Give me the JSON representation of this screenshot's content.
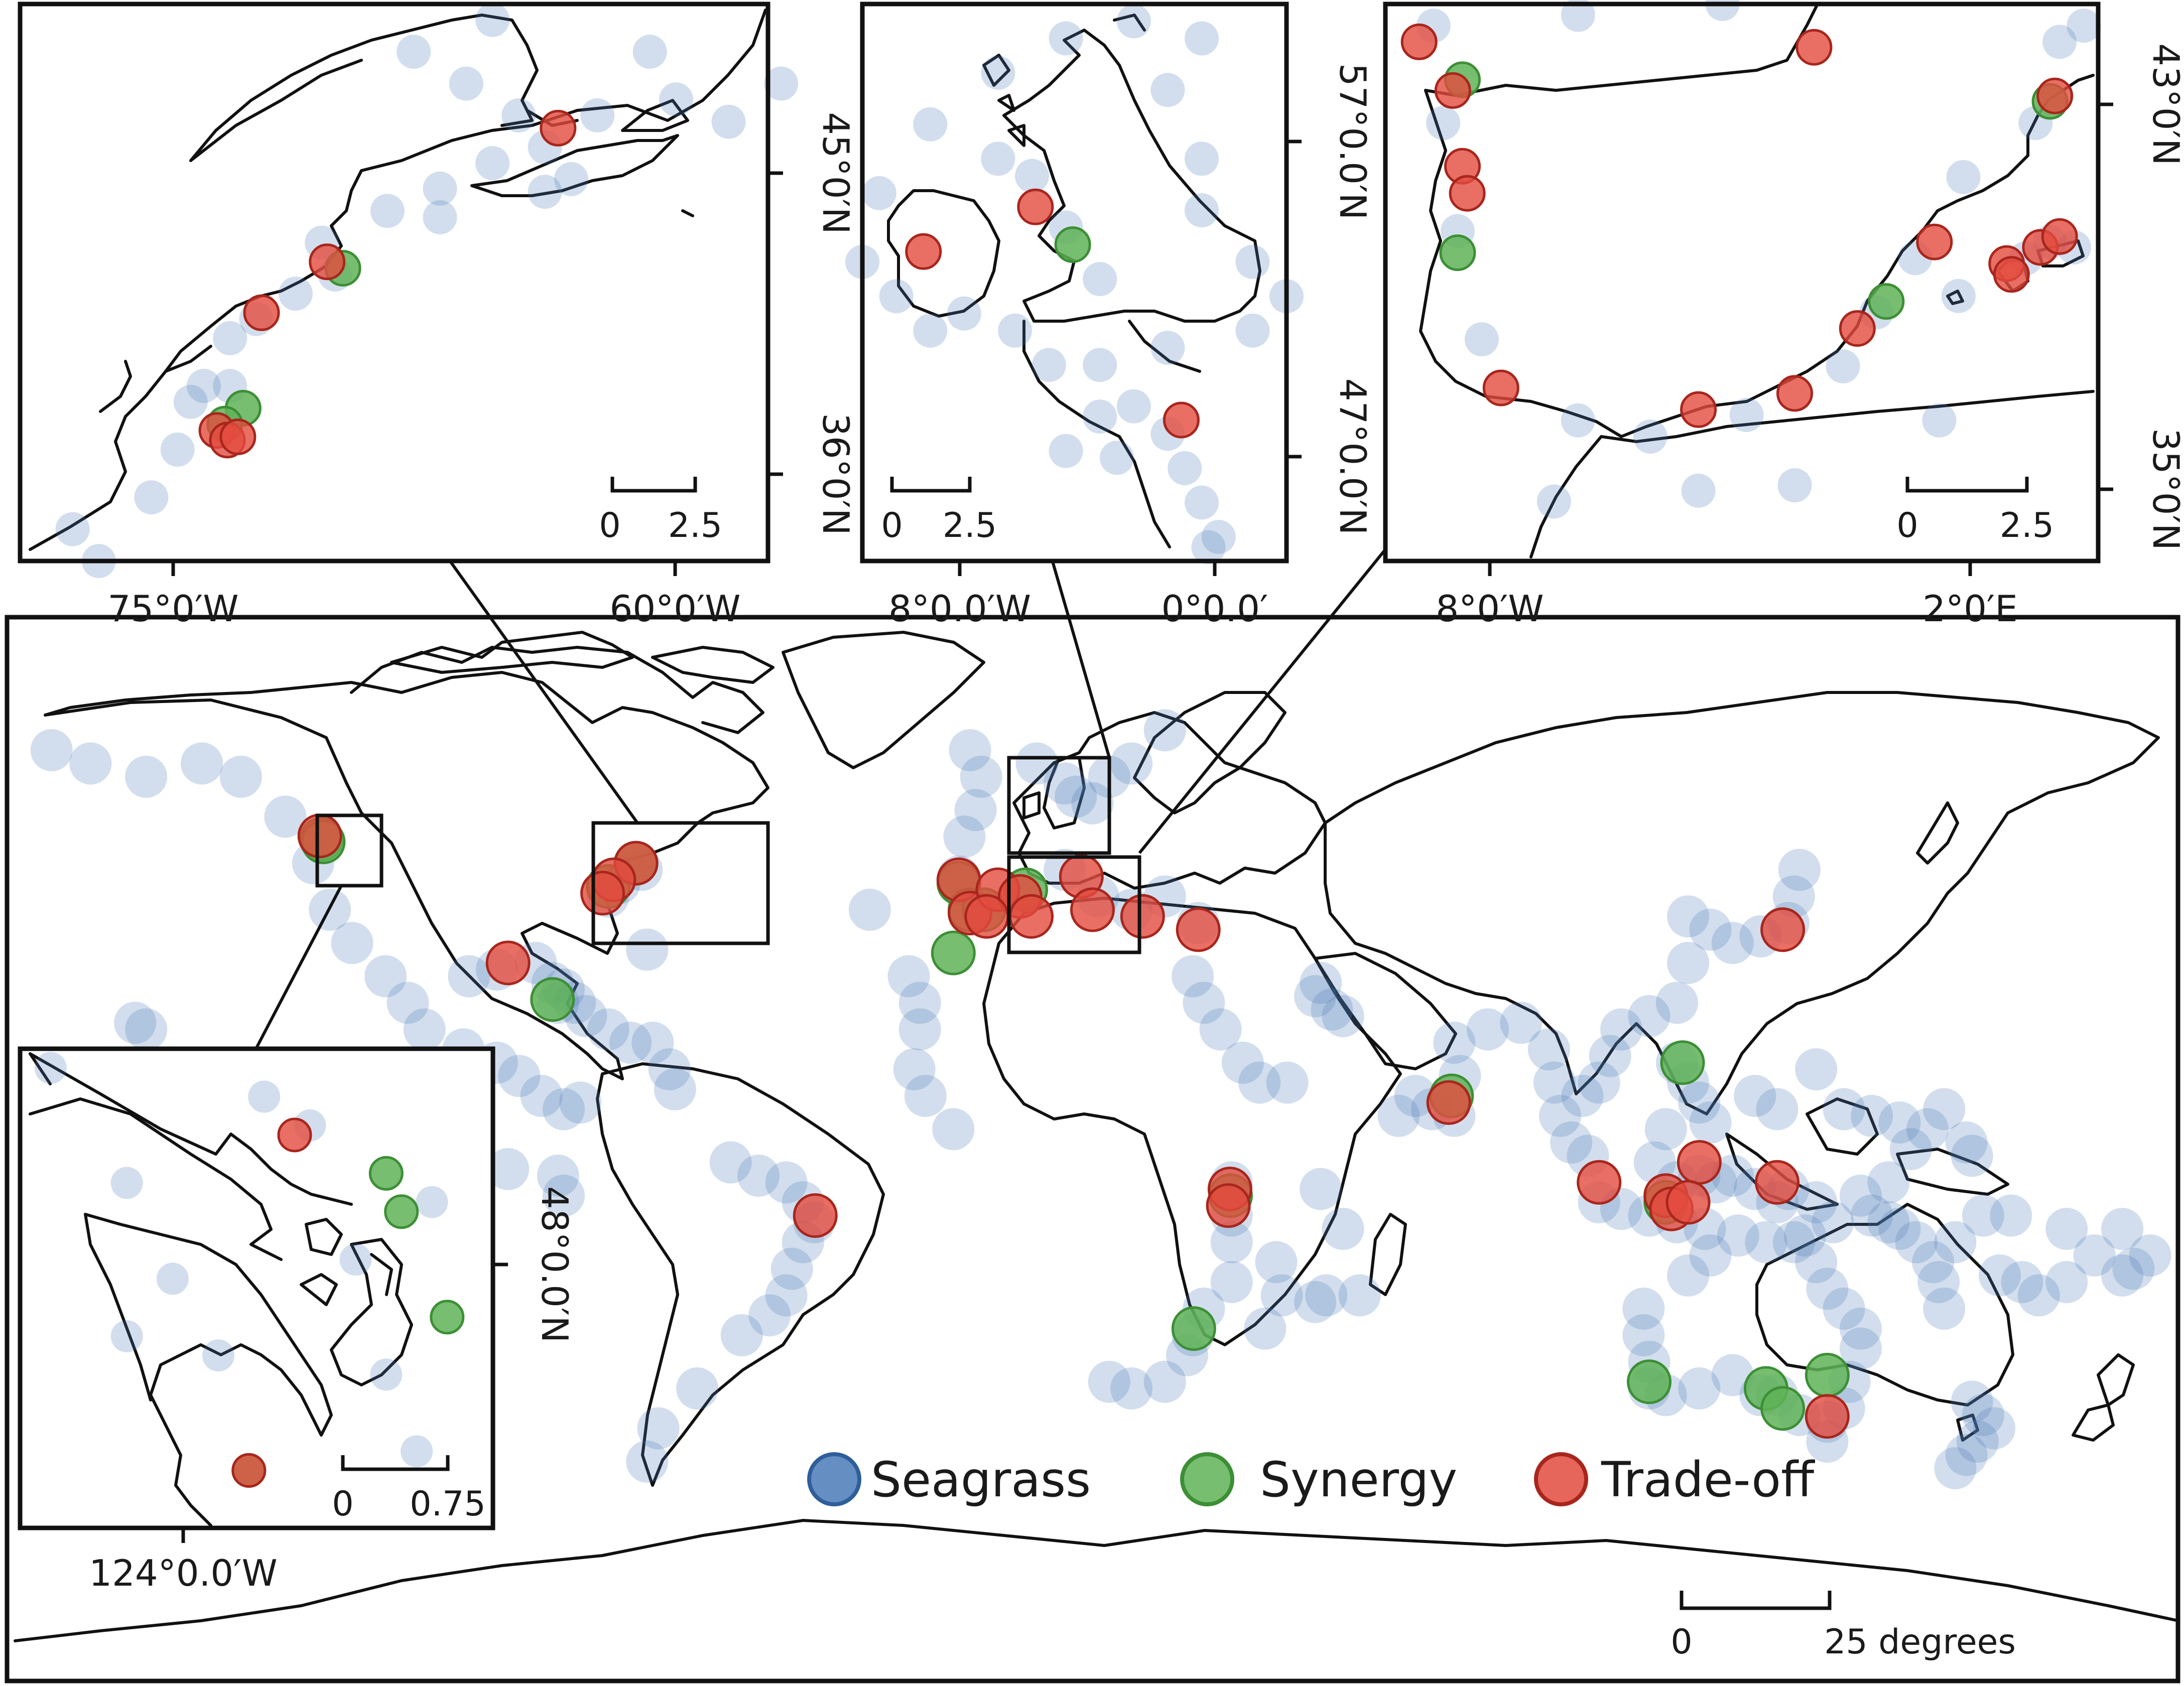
{
  "legend": {
    "items": [
      {
        "name": "seagrass",
        "label": "Seagrass",
        "fill": "#4a7ab8",
        "stroke": "#2f5e9b"
      },
      {
        "name": "synergy",
        "label": "Synergy",
        "fill": "#5fb357",
        "stroke": "#3d8f35"
      },
      {
        "name": "tradeoff",
        "label": "Trade-off",
        "fill": "#e34b3f",
        "stroke": "#a8261d"
      }
    ]
  },
  "main": {
    "scale": {
      "start": "0",
      "end": "25 degrees"
    },
    "seagrass": [
      [
        -172,
        62
      ],
      [
        -165,
        60
      ],
      [
        -155,
        58
      ],
      [
        -145,
        60
      ],
      [
        -138,
        58
      ],
      [
        -130,
        52
      ],
      [
        -125,
        45
      ],
      [
        -122,
        38
      ],
      [
        -118,
        33
      ],
      [
        -112,
        28
      ],
      [
        -108,
        24
      ],
      [
        -105,
        20
      ],
      [
        -98,
        17
      ],
      [
        -92,
        15
      ],
      [
        -88,
        13
      ],
      [
        -84,
        10
      ],
      [
        -80,
        8
      ],
      [
        -77,
        9
      ],
      [
        -157,
        21
      ],
      [
        -155,
        20
      ],
      [
        -97,
        28
      ],
      [
        -92,
        29
      ],
      [
        -85,
        30
      ],
      [
        -82,
        27
      ],
      [
        -81,
        24
      ],
      [
        -80,
        26
      ],
      [
        -78,
        24
      ],
      [
        -76,
        22
      ],
      [
        -72,
        20
      ],
      [
        -68,
        18
      ],
      [
        -64,
        18
      ],
      [
        -61,
        14
      ],
      [
        -60,
        11
      ],
      [
        -65,
        32
      ],
      [
        -72,
        40
      ],
      [
        -70,
        42
      ],
      [
        -66,
        44
      ],
      [
        -50,
        0
      ],
      [
        -45,
        -2
      ],
      [
        -40,
        -3
      ],
      [
        -37,
        -6
      ],
      [
        -35,
        -9
      ],
      [
        -37,
        -12
      ],
      [
        -39,
        -16
      ],
      [
        -40,
        -20
      ],
      [
        -43,
        -23
      ],
      [
        -48,
        -26
      ],
      [
        -56,
        -34
      ],
      [
        -63,
        -40
      ],
      [
        -65,
        -45
      ],
      [
        -80,
        -5
      ],
      [
        -81,
        -2
      ],
      [
        -90,
        -1
      ],
      [
        -25,
        38
      ],
      [
        -18,
        28
      ],
      [
        -16,
        24
      ],
      [
        -16,
        20
      ],
      [
        -17,
        14
      ],
      [
        -15,
        10
      ],
      [
        -10,
        5
      ],
      [
        -7,
        62
      ],
      [
        -9,
        43
      ],
      [
        -8,
        49
      ],
      [
        -6,
        53
      ],
      [
        -5,
        58
      ],
      [
        5,
        60
      ],
      [
        10,
        57
      ],
      [
        12,
        55
      ],
      [
        15,
        54
      ],
      [
        18,
        58
      ],
      [
        22,
        60
      ],
      [
        28,
        65
      ],
      [
        10,
        44
      ],
      [
        16,
        40
      ],
      [
        22,
        38
      ],
      [
        28,
        40
      ],
      [
        34,
        36
      ],
      [
        33,
        28
      ],
      [
        35,
        24
      ],
      [
        38,
        20
      ],
      [
        42,
        15
      ],
      [
        45,
        12
      ],
      [
        50,
        12
      ],
      [
        55,
        25
      ],
      [
        56,
        27
      ],
      [
        58,
        23
      ],
      [
        60,
        22
      ],
      [
        40,
        -3
      ],
      [
        40,
        -8
      ],
      [
        40,
        -12
      ],
      [
        40,
        -18
      ],
      [
        35,
        -22
      ],
      [
        33,
        -26
      ],
      [
        32,
        -29
      ],
      [
        28,
        -33
      ],
      [
        22,
        -34
      ],
      [
        18,
        -33
      ],
      [
        48,
        -15
      ],
      [
        49,
        -20
      ],
      [
        46,
        -25
      ],
      [
        55,
        -21
      ],
      [
        57,
        -20
      ],
      [
        56,
        -4
      ],
      [
        60,
        -10
      ],
      [
        63,
        -20
      ],
      [
        70,
        7
      ],
      [
        73,
        10
      ],
      [
        76,
        8
      ],
      [
        80,
        7
      ],
      [
        81,
        13
      ],
      [
        80,
        18
      ],
      [
        86,
        20
      ],
      [
        92,
        21
      ],
      [
        97,
        17
      ],
      [
        98,
        12
      ],
      [
        99,
        7
      ],
      [
        101,
        3
      ],
      [
        104,
        1
      ],
      [
        106,
        -6
      ],
      [
        110,
        -7
      ],
      [
        115,
        -8
      ],
      [
        120,
        -9
      ],
      [
        125,
        -10
      ],
      [
        103,
        10
      ],
      [
        106,
        12
      ],
      [
        108,
        16
      ],
      [
        110,
        20
      ],
      [
        115,
        22
      ],
      [
        120,
        24
      ],
      [
        122,
        30
      ],
      [
        122,
        37
      ],
      [
        126,
        35
      ],
      [
        130,
        33
      ],
      [
        135,
        34
      ],
      [
        140,
        36
      ],
      [
        141,
        40
      ],
      [
        142,
        44
      ],
      [
        120,
        15
      ],
      [
        122,
        12
      ],
      [
        124,
        9
      ],
      [
        126,
        6
      ],
      [
        118,
        5
      ],
      [
        116,
        0
      ],
      [
        120,
        -3
      ],
      [
        124,
        -2
      ],
      [
        127,
        -3
      ],
      [
        130,
        -2
      ],
      [
        134,
        -4
      ],
      [
        138,
        -6
      ],
      [
        140,
        -4
      ],
      [
        145,
        -6
      ],
      [
        148,
        -9
      ],
      [
        134,
        10
      ],
      [
        138,
        8
      ],
      [
        145,
        14
      ],
      [
        150,
        8
      ],
      [
        155,
        7
      ],
      [
        160,
        6
      ],
      [
        165,
        5
      ],
      [
        168,
        8
      ],
      [
        172,
        3
      ],
      [
        173,
        1
      ],
      [
        162,
        2
      ],
      [
        158,
        -3
      ],
      [
        153,
        -5
      ],
      [
        155,
        -8
      ],
      [
        158,
        -9
      ],
      [
        160,
        -10
      ],
      [
        163,
        -12
      ],
      [
        166,
        -15
      ],
      [
        167,
        -18
      ],
      [
        168,
        -22
      ],
      [
        178,
        -17
      ],
      [
        182,
        -18
      ],
      [
        185,
        -20
      ],
      [
        190,
        -18
      ],
      [
        195,
        -14
      ],
      [
        200,
        -17
      ],
      [
        202,
        -16
      ],
      [
        205,
        -14
      ],
      [
        200,
        -10
      ],
      [
        190,
        -10
      ],
      [
        180,
        -8
      ],
      [
        175,
        -8
      ],
      [
        170,
        -12
      ],
      [
        114,
        -22
      ],
      [
        114,
        -26
      ],
      [
        115,
        -30
      ],
      [
        115,
        -34
      ],
      [
        118,
        -35
      ],
      [
        124,
        -34
      ],
      [
        130,
        -32
      ],
      [
        135,
        -35
      ],
      [
        138,
        -35
      ],
      [
        142,
        -38
      ],
      [
        147,
        -39
      ],
      [
        150,
        -37
      ],
      [
        151,
        -33
      ],
      [
        153,
        -28
      ],
      [
        153,
        -25
      ],
      [
        150,
        -22
      ],
      [
        147,
        -19
      ],
      [
        145,
        -15
      ],
      [
        143,
        -11
      ],
      [
        141,
        -12
      ],
      [
        136,
        -12
      ],
      [
        131,
        -11
      ],
      [
        126,
        -14
      ],
      [
        122,
        -17
      ],
      [
        147,
        -42
      ],
      [
        173,
        -36
      ],
      [
        175,
        -38
      ],
      [
        177,
        -40
      ],
      [
        174,
        -42
      ],
      [
        172,
        -44
      ],
      [
        170,
        -46
      ]
    ],
    "synergy": [
      [
        -123.5,
        48.6
      ],
      [
        -123.2,
        48.2
      ],
      [
        -67,
        45
      ],
      [
        -72,
        41.5
      ],
      [
        -82,
        24.5
      ],
      [
        -10,
        31.5
      ],
      [
        -9,
        42
      ],
      [
        -7,
        38
      ],
      [
        3,
        41
      ],
      [
        -4.5,
        38
      ],
      [
        39.8,
        -5
      ],
      [
        33.2,
        -25
      ],
      [
        79.5,
        10
      ],
      [
        121,
        15
      ],
      [
        118,
        -6
      ],
      [
        115,
        -33
      ],
      [
        136,
        -34
      ],
      [
        139,
        -37
      ],
      [
        147,
        -32
      ]
    ],
    "tradeoff": [
      [
        -123.8,
        49.1
      ],
      [
        -67,
        45
      ],
      [
        -71,
        42.5
      ],
      [
        -73,
        40.5
      ],
      [
        -90,
        30
      ],
      [
        -9,
        42.5
      ],
      [
        -7,
        37.5
      ],
      [
        -2,
        41
      ],
      [
        2,
        40
      ],
      [
        -4,
        37
      ],
      [
        4,
        37
      ],
      [
        13,
        43
      ],
      [
        15,
        38
      ],
      [
        24,
        37
      ],
      [
        34,
        35
      ],
      [
        39.7,
        -4
      ],
      [
        39.4,
        -6.5
      ],
      [
        -34.8,
        -8
      ],
      [
        79,
        9
      ],
      [
        139,
        35
      ],
      [
        124,
        0
      ],
      [
        106,
        -3
      ],
      [
        118,
        -5
      ],
      [
        119,
        -7
      ],
      [
        122,
        -6
      ],
      [
        138,
        -3
      ],
      [
        147,
        -38.2
      ]
    ]
  },
  "inset_ne_us": {
    "x_ticks": [
      "75°0′W",
      "60°0′W"
    ],
    "y_ticks": [
      "45°0′N",
      "36°0′N"
    ],
    "scale": {
      "start": "0",
      "end": "2.5"
    },
    "seagrass": [
      [
        -80,
        34
      ],
      [
        -79,
        33
      ],
      [
        -77,
        35
      ],
      [
        -76,
        36.5
      ],
      [
        -75.5,
        38
      ],
      [
        -74,
        40
      ],
      [
        -73,
        40.6
      ],
      [
        -71.5,
        41.4
      ],
      [
        -70,
        42
      ],
      [
        -70.5,
        43
      ],
      [
        -68,
        44
      ],
      [
        -66,
        44.7
      ],
      [
        -64,
        45.5
      ],
      [
        -62,
        46
      ],
      [
        -61,
        45
      ],
      [
        -63,
        47
      ],
      [
        -65,
        48
      ],
      [
        -67,
        49
      ],
      [
        -64,
        50
      ],
      [
        -60,
        47
      ],
      [
        -57,
        47.5
      ],
      [
        -55,
        46.8
      ],
      [
        -58,
        49
      ],
      [
        -56,
        52
      ],
      [
        -53,
        48
      ],
      [
        -62,
        44.6
      ],
      [
        -66,
        43.8
      ],
      [
        -74,
        38.5
      ],
      [
        -75,
        38.5
      ]
    ],
    "synergy": [
      [
        -73.5,
        37.8
      ],
      [
        -74.2,
        37.3
      ],
      [
        -69.7,
        42.2
      ]
    ],
    "tradeoff": [
      [
        -61.5,
        46.6
      ],
      [
        -70.3,
        42.4
      ],
      [
        -72.8,
        40.8
      ],
      [
        -74.5,
        37.1
      ],
      [
        -74.1,
        36.8
      ],
      [
        -73.7,
        36.9
      ]
    ]
  },
  "inset_uk": {
    "x_ticks": [
      "8°0.0′W",
      "0°0.0′"
    ],
    "y_ticks": [
      "57°0.0′N",
      "47°0.0′N"
    ],
    "scale": {
      "start": "0",
      "end": "2.5"
    },
    "seagrass": [
      [
        -11,
        53
      ],
      [
        -10.5,
        55
      ],
      [
        -9,
        57
      ],
      [
        -7,
        58.5
      ],
      [
        -5,
        59.5
      ],
      [
        -3,
        60
      ],
      [
        -1,
        59.5
      ],
      [
        -2,
        58
      ],
      [
        -1,
        56
      ],
      [
        -1,
        54.5
      ],
      [
        0.5,
        53
      ],
      [
        1.5,
        52
      ],
      [
        0.5,
        51
      ],
      [
        -2,
        50.5
      ],
      [
        -4,
        50
      ],
      [
        -5.5,
        50
      ],
      [
        -6.5,
        51
      ],
      [
        -8,
        51.5
      ],
      [
        -10,
        52
      ],
      [
        -5,
        47.5
      ],
      [
        -4,
        48.5
      ],
      [
        -3,
        48.8
      ],
      [
        -2,
        48
      ],
      [
        -1.5,
        47
      ],
      [
        -1,
        46
      ],
      [
        -0.5,
        45
      ],
      [
        -4,
        52.5
      ],
      [
        -5,
        54
      ],
      [
        -6,
        55.5
      ],
      [
        -7,
        56
      ],
      [
        -9,
        51
      ],
      [
        -3.5,
        47.3
      ],
      [
        -0.8,
        44.7
      ]
    ],
    "synergy": [
      [
        -4.8,
        53.5
      ]
    ],
    "tradeoff": [
      [
        -9.2,
        53.3
      ],
      [
        -5.9,
        54.6
      ],
      [
        -1.6,
        48.4
      ]
    ]
  },
  "inset_iberia": {
    "x_ticks": [
      "8°0′W",
      "2°0′E"
    ],
    "y_ticks": [
      "43°0′N",
      "35°0′N"
    ],
    "scale": {
      "start": "0",
      "end": "2.5"
    },
    "seagrass": [
      [
        -9.3,
        42
      ],
      [
        -9,
        40
      ],
      [
        -8.5,
        38
      ],
      [
        -6.5,
        36.5
      ],
      [
        -5,
        36.2
      ],
      [
        -3,
        36.6
      ],
      [
        -1,
        37.5
      ],
      [
        -0.3,
        38.5
      ],
      [
        0.5,
        39.5
      ],
      [
        1.5,
        41
      ],
      [
        3,
        42
      ],
      [
        3.5,
        43.5
      ],
      [
        4,
        43.8
      ],
      [
        2.8,
        39.5
      ],
      [
        3.3,
        39.8
      ],
      [
        3.8,
        39.7
      ],
      [
        1.4,
        38.8
      ],
      [
        -7,
        35
      ],
      [
        -4,
        35.2
      ],
      [
        -2,
        35.3
      ],
      [
        1,
        36.5
      ],
      [
        -3.5,
        44.2
      ],
      [
        -6.5,
        44
      ],
      [
        -9.5,
        43.8
      ]
    ],
    "synergy": [
      [
        -8.9,
        42.8
      ],
      [
        -9,
        39.6
      ],
      [
        -0.1,
        38.7
      ],
      [
        3.3,
        42.4
      ]
    ],
    "tradeoff": [
      [
        -9.8,
        43.5
      ],
      [
        -9.1,
        42.6
      ],
      [
        -8.9,
        41.2
      ],
      [
        -8.8,
        40.7
      ],
      [
        -8.1,
        37.1
      ],
      [
        -4,
        36.7
      ],
      [
        -2,
        37
      ],
      [
        -0.7,
        38.2
      ],
      [
        0.9,
        39.8
      ],
      [
        2.4,
        39.4
      ],
      [
        2.5,
        39.2
      ],
      [
        3.1,
        39.7
      ],
      [
        3.5,
        39.9
      ],
      [
        3.4,
        42.5
      ],
      [
        -1.6,
        43.4
      ]
    ]
  },
  "inset_bc": {
    "x_ticks": [
      "124°0.0′W"
    ],
    "y_ticks": [
      "48°0.0′N"
    ],
    "scale": {
      "start": "0",
      "end": "0.75"
    },
    "seagrass": [
      [
        -125.3,
        49.6
      ],
      [
        -124.8,
        49
      ],
      [
        -124.5,
        48.5
      ],
      [
        -124.2,
        48.1
      ],
      [
        -124.8,
        48.2
      ],
      [
        -123.3,
        48.6
      ],
      [
        -122.8,
        48.9
      ],
      [
        -123.6,
        49.3
      ],
      [
        -123.9,
        49.45
      ],
      [
        -123.1,
        48
      ],
      [
        -122.9,
        47.6
      ]
    ],
    "synergy": [
      [
        -123.1,
        49.05
      ],
      [
        -123.0,
        48.85
      ],
      [
        -122.7,
        48.3
      ],
      [
        -124.0,
        47.5
      ]
    ],
    "tradeoff": [
      [
        -123.7,
        49.25
      ],
      [
        -124.0,
        47.5
      ]
    ]
  }
}
